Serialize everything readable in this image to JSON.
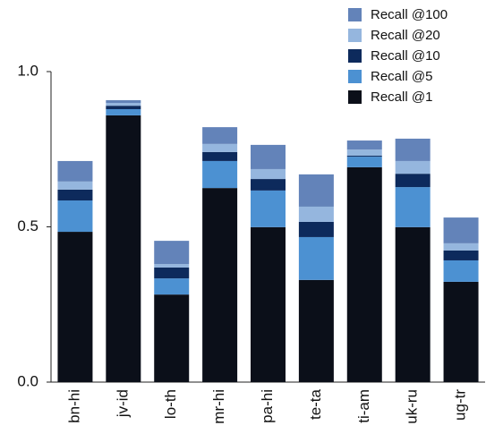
{
  "chart_data": {
    "type": "stacked_bar",
    "categories": [
      "bn-hi",
      "jv-id",
      "lo-th",
      "mr-hi",
      "pa-hi",
      "te-ta",
      "ti-am",
      "uk-ru",
      "ug-tr"
    ],
    "series": [
      {
        "name": "Recall @1",
        "color": "#0b0f19",
        "values": [
          0.484,
          0.859,
          0.282,
          0.625,
          0.499,
          0.329,
          0.692,
          0.499,
          0.323
        ]
      },
      {
        "name": "Recall @5",
        "color": "#4c91d2",
        "values": [
          0.101,
          0.02,
          0.052,
          0.087,
          0.118,
          0.138,
          0.034,
          0.129,
          0.069
        ]
      },
      {
        "name": "Recall @10",
        "color": "#0d2a5c",
        "values": [
          0.035,
          0.011,
          0.035,
          0.029,
          0.037,
          0.049,
          0.003,
          0.043,
          0.032
        ]
      },
      {
        "name": "Recall @20",
        "color": "#95b6de",
        "values": [
          0.026,
          0.009,
          0.011,
          0.026,
          0.032,
          0.049,
          0.02,
          0.041,
          0.023
        ]
      },
      {
        "name": "Recall @100",
        "color": "#6383b9",
        "values": [
          0.066,
          0.009,
          0.075,
          0.054,
          0.078,
          0.104,
          0.029,
          0.072,
          0.083
        ]
      }
    ],
    "ylim": [
      0,
      1
    ],
    "yticks": [
      {
        "value": 0,
        "label": "0.0"
      },
      {
        "value": 0.5,
        "label": "0.5"
      },
      {
        "value": 1,
        "label": "1.0"
      }
    ],
    "legend": "top-right",
    "grid": false
  }
}
